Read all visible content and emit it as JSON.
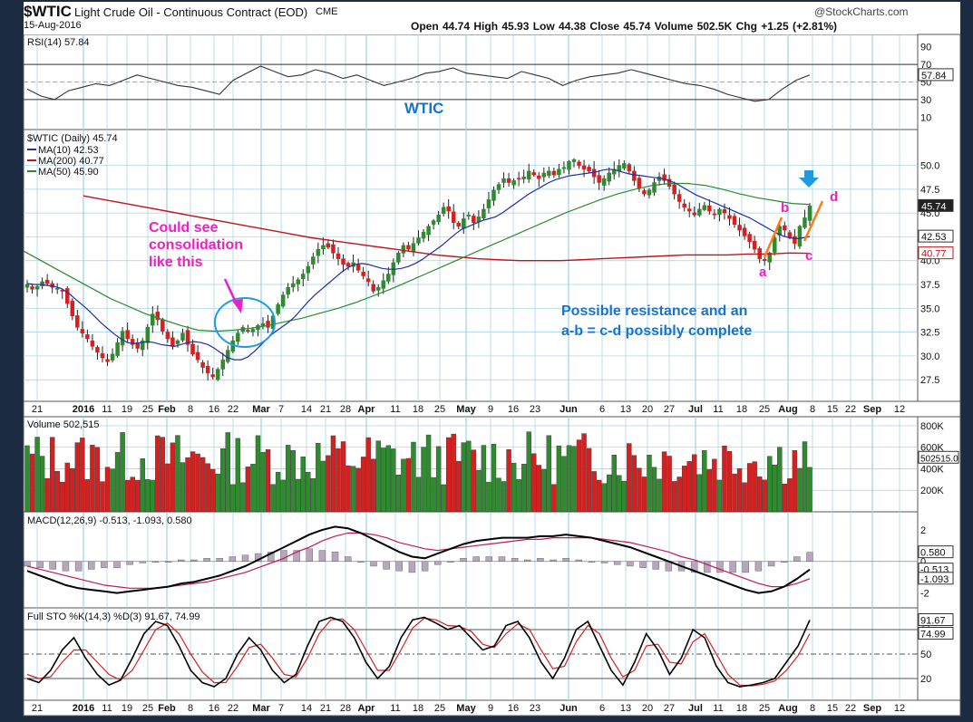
{
  "header": {
    "symbol": "$WTIC",
    "description": "Light Crude Oil - Continuous Contract (EOD)",
    "exchange": "CME",
    "date": "15-Aug-2016",
    "watermark": "@StockCharts.com",
    "ohlc_line": "Open 44.74  High 45.93  Low 44.38  Close 45.74  Volume 502.5K  Chg +1.25 (+2.81%)"
  },
  "annotations": {
    "wtic": "WTIC",
    "consolidation": [
      "Could see",
      "consolidation",
      "like this"
    ],
    "resistance": [
      "Possible resistance and an",
      "a-b = c-d possibly complete"
    ],
    "wave_a": "a",
    "wave_b": "b",
    "wave_c": "c",
    "wave_d": "d"
  },
  "colors": {
    "panel_bg": "#ffffff",
    "grid": "#9fd0e6",
    "up_bar": "#2e8b2e",
    "down_bar": "#d62020",
    "ma10": "#1f2ea8",
    "ma50": "#2c8a2c",
    "ma200": "#c0141c",
    "macd_signal": "#c2185b",
    "annotation_magenta": "#ee1fc6",
    "annotation_blue": "#1a73c8",
    "pattern_orange": "#ff7a1a",
    "arrow_blue": "#1e9be0"
  },
  "x_axis_labels": [
    "21",
    "2016",
    "11",
    "19",
    "25",
    "Feb",
    "8",
    "16",
    "22",
    "Mar",
    "7",
    "14",
    "21",
    "28",
    "Apr",
    "11",
    "18",
    "25",
    "May",
    "9",
    "16",
    "23",
    "Jun",
    "6",
    "13",
    "20",
    "27",
    "Jul",
    "11",
    "18",
    "25",
    "Aug",
    "8",
    "15",
    "22",
    "Sep",
    "12"
  ],
  "chart_data": [
    {
      "type": "line",
      "panel": "rsi",
      "legend": "RSI(14) 57.84",
      "last_value": "57.84",
      "y_ticks": [
        "90",
        "70",
        "50",
        "30",
        "10"
      ],
      "ylim": [
        0,
        100
      ],
      "levels": [
        70,
        30
      ],
      "series": [
        {
          "values": [
            42,
            34,
            30,
            40,
            44,
            48,
            46,
            52,
            58,
            54,
            50,
            46,
            44,
            40,
            36,
            52,
            60,
            68,
            62,
            56,
            58,
            64,
            60,
            54,
            58,
            52,
            46,
            50,
            54,
            60,
            62,
            66,
            60,
            58,
            56,
            54,
            62,
            58,
            54,
            46,
            52,
            56,
            58,
            60,
            64,
            60,
            56,
            52,
            48,
            46,
            42,
            36,
            32,
            28,
            30,
            42,
            52,
            58
          ]
        }
      ]
    },
    {
      "type": "candlestick",
      "panel": "price",
      "title": "$WTIC (Daily) 45.74",
      "legend": [
        {
          "name": "MA(10) 42.53",
          "key": "ma10"
        },
        {
          "name": "MA(200) 40.77",
          "key": "ma200"
        },
        {
          "name": "MA(50) 45.90",
          "key": "ma50"
        }
      ],
      "y_ticks": [
        "50.0",
        "47.5",
        "45.0",
        "42.5",
        "40.0",
        "37.5",
        "35.0",
        "32.5",
        "30.0",
        "27.5"
      ],
      "ylim": [
        26,
        53
      ],
      "badges": [
        {
          "label": "45.74",
          "value": 45.74,
          "style": "dark"
        },
        {
          "label": "42.53",
          "value": 42.53,
          "style": "plain"
        },
        {
          "label": "40.77",
          "value": 40.77,
          "style": "red"
        }
      ],
      "close": [
        37.5,
        37.0,
        37.3,
        37.8,
        37.6,
        37.2,
        37.1,
        36.8,
        35.5,
        34.2,
        33.0,
        32.4,
        31.8,
        31.0,
        30.4,
        29.8,
        29.4,
        30.2,
        31.4,
        32.6,
        31.8,
        31.2,
        30.8,
        31.6,
        33.0,
        34.4,
        33.8,
        32.6,
        31.8,
        31.0,
        31.6,
        32.4,
        31.2,
        30.2,
        29.6,
        28.8,
        28.2,
        27.8,
        28.6,
        29.6,
        30.6,
        31.6,
        32.4,
        33.0,
        32.6,
        32.8,
        33.2,
        33.4,
        33.0,
        34.2,
        35.4,
        36.4,
        37.2,
        37.6,
        38.0,
        38.6,
        39.4,
        40.4,
        41.2,
        41.6,
        41.4,
        40.8,
        40.2,
        39.6,
        39.4,
        39.8,
        39.0,
        38.4,
        37.8,
        36.8,
        37.2,
        37.9,
        38.6,
        39.8,
        40.8,
        41.6,
        41.2,
        41.8,
        42.4,
        43.0,
        43.6,
        44.2,
        44.8,
        45.6,
        45.2,
        44.0,
        43.6,
        44.4,
        44.8,
        44.0,
        44.6,
        45.4,
        46.4,
        47.4,
        48.0,
        48.6,
        48.2,
        48.4,
        48.6,
        48.8,
        49.4,
        49.0,
        48.6,
        49.2,
        49.4,
        49.0,
        49.6,
        49.8,
        50.4,
        50.6,
        50.0,
        49.6,
        49.4,
        48.8,
        48.2,
        48.6,
        49.2,
        49.6,
        50.0,
        50.2,
        49.4,
        48.4,
        47.6,
        47.0,
        47.4,
        48.2,
        48.8,
        48.4,
        47.8,
        47.0,
        46.2,
        45.6,
        45.2,
        44.8,
        45.4,
        45.8,
        45.2,
        44.8,
        45.4,
        45.0,
        44.4,
        43.8,
        43.2,
        42.6,
        42.0,
        41.2,
        40.2,
        40.0,
        40.8,
        42.4,
        43.6,
        43.2,
        42.4,
        41.8,
        43.6,
        44.5,
        45.74
      ],
      "ma10": [
        37.6,
        37.5,
        37.5,
        37.4,
        37.3,
        37.1,
        36.7,
        36.1,
        35.5,
        34.9,
        34.2,
        33.5,
        32.9,
        32.3,
        31.8,
        31.4,
        31.3,
        31.4,
        31.5,
        31.4,
        31.2,
        31.1,
        31.0,
        31.2,
        31.4,
        31.5,
        31.4,
        31.2,
        30.8,
        30.3,
        29.8,
        29.6,
        29.6,
        29.9,
        30.5,
        31.2,
        31.9,
        32.5,
        33.0,
        33.5,
        34.1,
        34.9,
        35.7,
        36.4,
        37.0,
        37.6,
        38.2,
        38.8,
        39.3,
        39.6,
        39.7,
        39.6,
        39.4,
        39.2,
        39.1,
        39.1,
        39.2,
        39.4,
        39.7,
        40.1,
        40.6,
        41.1,
        41.6,
        42.2,
        42.8,
        43.3,
        43.6,
        43.9,
        44.2,
        44.4,
        44.6,
        45.0,
        45.5,
        46.0,
        46.5,
        47.0,
        47.4,
        47.8,
        48.2,
        48.5,
        48.7,
        48.9,
        49.0,
        49.1,
        49.2,
        49.3,
        49.5,
        49.6,
        49.5,
        49.3,
        49.1,
        49.0,
        48.9,
        48.8,
        48.7,
        48.6,
        48.4,
        48.1,
        47.7,
        47.3,
        46.9,
        46.6,
        46.3,
        46.0,
        45.7,
        45.4,
        45.1,
        44.8,
        44.5,
        44.1,
        43.7,
        43.3,
        42.9,
        42.6,
        42.4,
        42.3,
        42.4,
        42.53
      ],
      "ma200": [
        46.8,
        46.4,
        46.0,
        45.6,
        45.2,
        44.8,
        44.4,
        44.0,
        43.6,
        43.2,
        42.8,
        42.4,
        42.1,
        41.8,
        41.5,
        41.2,
        40.9,
        40.6,
        40.4,
        40.2,
        40.1,
        40.0,
        40.0,
        40.0,
        40.1,
        40.2,
        40.3,
        40.4,
        40.5,
        40.6,
        40.6,
        40.6,
        40.7,
        40.7,
        40.8,
        40.77
      ],
      "ma50": [
        41.0,
        40.0,
        39.0,
        38.0,
        37.0,
        36.0,
        35.2,
        34.4,
        33.8,
        33.2,
        32.7,
        32.6,
        32.7,
        32.9,
        33.2,
        33.6,
        34.0,
        34.5,
        35.0,
        35.6,
        36.3,
        37.0,
        37.8,
        38.6,
        39.4,
        40.2,
        41.0,
        41.8,
        42.6,
        43.4,
        44.2,
        45.0,
        45.7,
        46.4,
        47.0,
        47.5,
        47.9,
        48.1,
        48.1,
        47.9,
        47.5,
        47.0,
        46.6,
        46.3,
        46.0,
        45.9
      ]
    },
    {
      "type": "bar",
      "panel": "volume",
      "legend": "Volume 502,515",
      "last_label": "502515.0",
      "y_ticks": [
        "800K",
        "600K",
        "400K",
        "200K"
      ],
      "ylim": [
        0,
        850000
      ]
    },
    {
      "type": "line",
      "panel": "macd",
      "legend": "MACD(12,26,9) -0.513, -1.093, 0.580",
      "y_ticks": [
        "2",
        "0",
        "-2"
      ],
      "ylim": [
        -2.6,
        2.8
      ],
      "badges": [
        {
          "label": "0.580",
          "value": 0.58
        },
        {
          "label": "-0.513",
          "value": -0.513
        },
        {
          "label": "-1.093",
          "value": -1.093
        }
      ],
      "macd": [
        -0.6,
        -0.9,
        -1.2,
        -1.5,
        -1.7,
        -1.8,
        -1.9,
        -2.0,
        -1.9,
        -1.8,
        -1.7,
        -1.6,
        -1.4,
        -1.3,
        -1.1,
        -0.9,
        -0.6,
        -0.3,
        0.1,
        0.5,
        0.9,
        1.3,
        1.7,
        2.0,
        2.2,
        2.1,
        1.8,
        1.4,
        1.0,
        0.6,
        0.3,
        0.2,
        0.5,
        0.8,
        1.1,
        1.3,
        1.4,
        1.5,
        1.5,
        1.5,
        1.6,
        1.6,
        1.7,
        1.6,
        1.5,
        1.3,
        1.1,
        0.9,
        0.6,
        0.3,
        0.0,
        -0.3,
        -0.6,
        -0.9,
        -1.2,
        -1.5,
        -1.8,
        -2.0,
        -1.9,
        -1.6,
        -1.1,
        -0.513
      ],
      "signal": [
        -0.3,
        -0.5,
        -0.7,
        -0.9,
        -1.1,
        -1.3,
        -1.5,
        -1.6,
        -1.7,
        -1.7,
        -1.7,
        -1.6,
        -1.5,
        -1.4,
        -1.3,
        -1.1,
        -0.9,
        -0.7,
        -0.4,
        -0.1,
        0.2,
        0.6,
        0.9,
        1.3,
        1.6,
        1.8,
        1.8,
        1.7,
        1.5,
        1.2,
        1.0,
        0.8,
        0.7,
        0.8,
        0.9,
        1.0,
        1.1,
        1.2,
        1.3,
        1.4,
        1.4,
        1.5,
        1.5,
        1.5,
        1.5,
        1.4,
        1.3,
        1.2,
        1.0,
        0.8,
        0.6,
        0.3,
        0.1,
        -0.2,
        -0.5,
        -0.8,
        -1.1,
        -1.4,
        -1.6,
        -1.6,
        -1.4,
        -1.093
      ]
    },
    {
      "type": "line",
      "panel": "stochastic",
      "legend": "Full STO %K(14,3) %D(3) 91.67, 74.99",
      "y_ticks": [
        "80",
        "50",
        "20"
      ],
      "ylim": [
        0,
        100
      ],
      "levels": [
        80,
        50,
        20
      ],
      "badges": [
        {
          "label": "91.67",
          "value": 91.67
        },
        {
          "label": "74.99",
          "value": 74.99
        }
      ],
      "k": [
        20,
        15,
        30,
        55,
        70,
        45,
        25,
        12,
        18,
        45,
        75,
        90,
        85,
        60,
        30,
        15,
        10,
        20,
        50,
        70,
        55,
        30,
        15,
        25,
        60,
        90,
        95,
        90,
        70,
        40,
        20,
        35,
        70,
        92,
        95,
        88,
        80,
        85,
        70,
        55,
        60,
        85,
        90,
        70,
        40,
        20,
        45,
        80,
        90,
        60,
        30,
        12,
        40,
        75,
        55,
        25,
        45,
        80,
        70,
        35,
        15,
        10,
        12,
        15,
        20,
        40,
        60,
        91.67
      ],
      "d": [
        25,
        20,
        22,
        40,
        55,
        55,
        40,
        25,
        18,
        30,
        55,
        80,
        88,
        75,
        50,
        28,
        15,
        15,
        35,
        58,
        62,
        45,
        25,
        22,
        45,
        75,
        92,
        93,
        80,
        55,
        30,
        30,
        55,
        82,
        94,
        92,
        85,
        84,
        78,
        62,
        58,
        75,
        87,
        80,
        55,
        32,
        35,
        65,
        85,
        75,
        45,
        22,
        30,
        60,
        62,
        40,
        38,
        65,
        75,
        50,
        25,
        12,
        11,
        13,
        17,
        30,
        48,
        74.99
      ]
    }
  ]
}
